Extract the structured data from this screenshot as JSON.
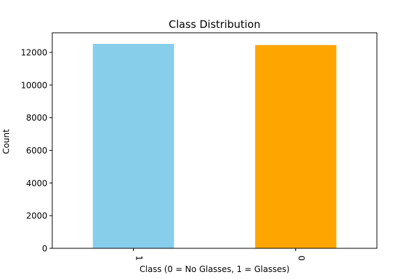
{
  "chart_data": {
    "type": "bar",
    "title": "Class Distribution",
    "xlabel": "Class (0 = No Glasses, 1 = Glasses)",
    "ylabel": "Count",
    "categories": [
      "1",
      "0"
    ],
    "values": [
      12520,
      12450
    ],
    "colors": [
      "#87ceeb",
      "#ffa500"
    ],
    "ylim": [
      0,
      13200
    ],
    "yticks": [
      0,
      2000,
      4000,
      6000,
      8000,
      10000,
      12000
    ],
    "grid": false,
    "legend": "none"
  }
}
